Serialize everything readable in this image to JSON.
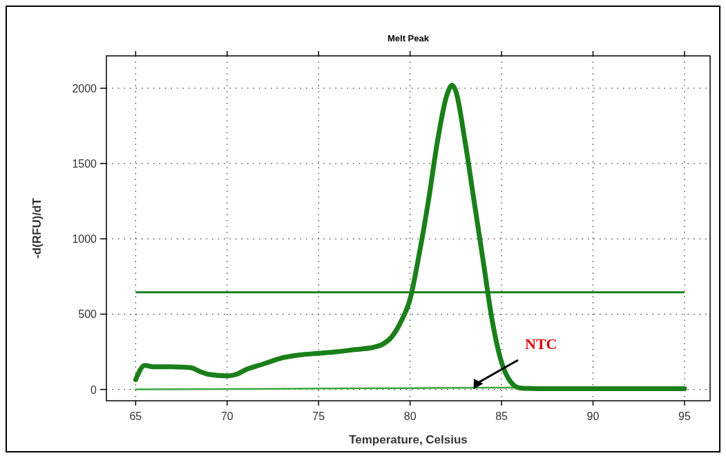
{
  "chart_data": {
    "type": "line",
    "title": "Melt Peak",
    "xlabel": "Temperature, Celsius",
    "ylabel": "-d(RFU)/dT",
    "xlim": [
      63.4,
      96.4
    ],
    "ylim": [
      -75,
      2215
    ],
    "xticks": [
      65,
      70,
      75,
      80,
      85,
      90,
      95
    ],
    "yticks": [
      0,
      500,
      1000,
      1500,
      2000
    ],
    "grid": true,
    "marker": "none",
    "line_style": "solid",
    "series": [
      {
        "color": "#1a7f1a",
        "x": [
          65,
          65.5,
          66,
          67,
          68,
          68.5,
          69,
          70,
          70.5,
          71,
          72,
          73,
          74,
          75,
          76,
          77,
          78,
          78.5,
          79,
          79.5,
          80,
          80.5,
          81,
          81.5,
          82,
          82.3,
          82.5,
          83,
          83.5,
          84,
          84.5,
          85,
          85.5,
          86,
          87,
          90,
          95
        ],
        "values": [
          65,
          160,
          150,
          150,
          145,
          120,
          100,
          90,
          100,
          130,
          170,
          210,
          230,
          240,
          250,
          265,
          280,
          300,
          350,
          450,
          600,
          900,
          1250,
          1650,
          1950,
          2020,
          1980,
          1650,
          1250,
          850,
          450,
          180,
          50,
          10,
          5,
          5,
          5
        ]
      },
      {
        "color": "#3fa63f",
        "x": [
          65,
          70,
          75,
          80,
          85,
          90,
          95
        ],
        "values": [
          0,
          3,
          6,
          9,
          12,
          10,
          8
        ]
      }
    ],
    "ref_lines": [
      {
        "axis": "y",
        "value": 645,
        "color": "#1a7f1a",
        "line_style": "solid"
      }
    ],
    "annotations": [
      "NTC"
    ]
  }
}
